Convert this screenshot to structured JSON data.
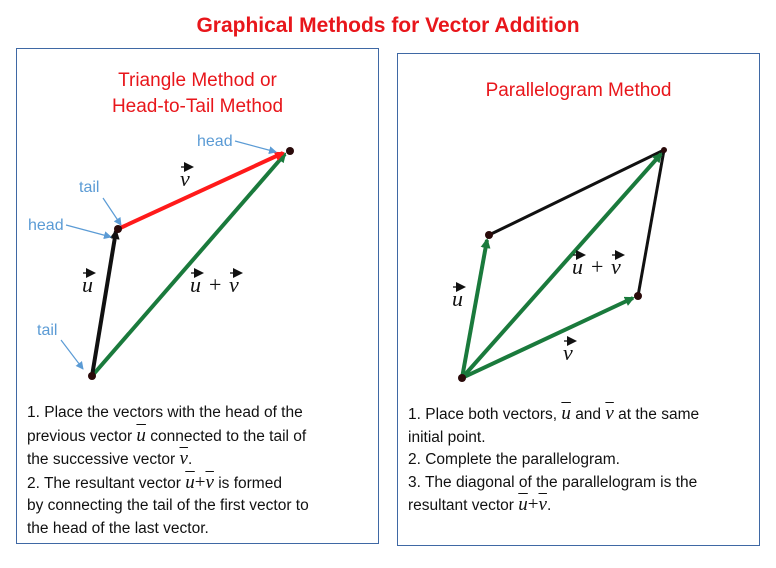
{
  "title": "Graphical Methods for Vector Addition",
  "colors": {
    "title": "#e8161b",
    "border": "#3f68a4",
    "green": "#1a7a3c",
    "red": "#ff1a1a",
    "black": "#111111",
    "annotation": "#5b9bd5"
  },
  "vectors": {
    "u": "u",
    "v": "v",
    "plus": "+"
  },
  "triangle": {
    "title_line1": "Triangle Method or",
    "title_line2": "Head-to-Tail Method",
    "annotations": {
      "head_top": "head",
      "tail_top": "tail",
      "head_mid": "head",
      "tail_bottom": "tail"
    },
    "steps": {
      "s1_a": "1. Place the vectors with the head of the",
      "s1_b": "previous vector",
      "s1_c": "connected to the tail of",
      "s1_d": "the successive vector",
      "s1_e": ".",
      "s2_a": "2. The resultant vector",
      "s2_b": "is formed",
      "s2_c": "by connecting the tail of the first vector to",
      "s2_d": "the head of the last vector."
    }
  },
  "parallelogram": {
    "title": "Parallelogram Method",
    "steps": {
      "s1_a": "1. Place both vectors,",
      "s1_b": "and",
      "s1_c": "at the same",
      "s1_d": "initial point.",
      "s2": "2. Complete the parallelogram.",
      "s3_a": "3. The diagonal of the parallelogram is the",
      "s3_b": "resultant vector",
      "s3_c": "."
    }
  }
}
